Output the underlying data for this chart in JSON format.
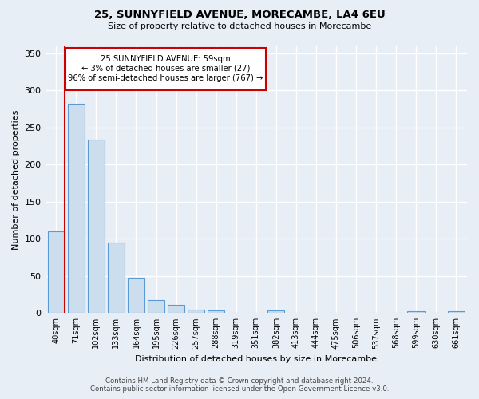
{
  "title": "25, SUNNYFIELD AVENUE, MORECAMBE, LA4 6EU",
  "subtitle": "Size of property relative to detached houses in Morecambe",
  "xlabel": "Distribution of detached houses by size in Morecambe",
  "ylabel": "Number of detached properties",
  "footer_line1": "Contains HM Land Registry data © Crown copyright and database right 2024.",
  "footer_line2": "Contains public sector information licensed under the Open Government Licence v3.0.",
  "categories": [
    "40sqm",
    "71sqm",
    "102sqm",
    "133sqm",
    "164sqm",
    "195sqm",
    "226sqm",
    "257sqm",
    "288sqm",
    "319sqm",
    "351sqm",
    "382sqm",
    "413sqm",
    "444sqm",
    "475sqm",
    "506sqm",
    "537sqm",
    "568sqm",
    "599sqm",
    "630sqm",
    "661sqm"
  ],
  "values": [
    110,
    282,
    234,
    95,
    48,
    17,
    11,
    5,
    4,
    0,
    0,
    4,
    0,
    0,
    0,
    0,
    0,
    0,
    3,
    0,
    3
  ],
  "bar_color": "#ccdded",
  "bar_edge_color": "#5b9bd5",
  "highlight_line_color": "#cc0000",
  "annotation_line1": "25 SUNNYFIELD AVENUE: 59sqm",
  "annotation_line2": "← 3% of detached houses are smaller (27)",
  "annotation_line3": "96% of semi-detached houses are larger (767) →",
  "ylim": [
    0,
    360
  ],
  "yticks": [
    0,
    50,
    100,
    150,
    200,
    250,
    300,
    350
  ],
  "bg_color": "#e8eef6",
  "plot_bg_color": "#e8eef6",
  "grid_color": "white",
  "red_line_x": 0.42
}
